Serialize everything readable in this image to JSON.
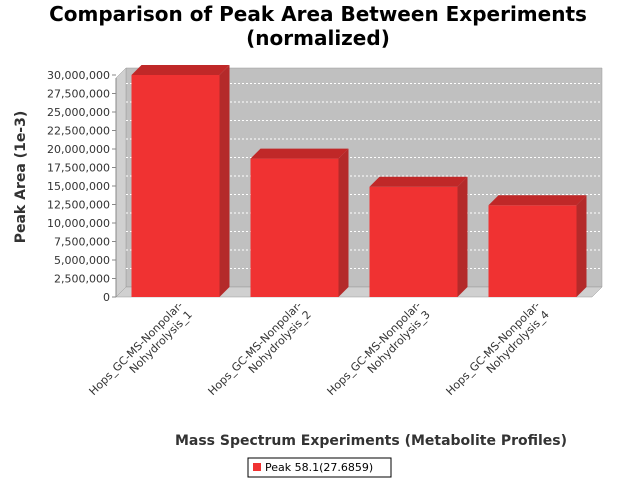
{
  "chart_data": {
    "type": "bar",
    "title": "Comparison of Peak Area Between Experiments",
    "subtitle": "(normalized)",
    "xlabel": "Mass Spectrum Experiments (Metabolite Profiles)",
    "ylabel": "Peak Area (1e-3)",
    "categories": [
      [
        "Hops_GC-MS-Nonpolar-",
        "Nohydrolysis_1"
      ],
      [
        "Hops_GC-MS-Nonpolar-",
        "Nohydrolysis_2"
      ],
      [
        "Hops_GC-MS-Nonpolar-",
        "Nohydrolysis_3"
      ],
      [
        "Hops_GC-MS-Nonpolar-",
        "Nohydrolysis_4"
      ]
    ],
    "series": [
      {
        "name": "Peak 58.1(27.6859)",
        "values": [
          30000000,
          18700000,
          14900000,
          12400000
        ]
      }
    ],
    "ylim": [
      0,
      30000000
    ],
    "yticks": [
      0,
      2500000,
      5000000,
      7500000,
      10000000,
      12500000,
      15000000,
      17500000,
      20000000,
      22500000,
      25000000,
      27500000,
      30000000
    ],
    "ytick_labels": [
      "0",
      "2,500,000",
      "5,000,000",
      "7,500,000",
      "10,000,000",
      "12,500,000",
      "15,000,000",
      "17,500,000",
      "20,000,000",
      "22,500,000",
      "25,000,000",
      "27,500,000",
      "30,000,000"
    ],
    "grid": true,
    "legend_position": "bottom-center",
    "colors": {
      "bar_front": "#f03232",
      "bar_side": "#b42a2a",
      "bar_top": "#c02828",
      "plot_bg": "#c0c0c0",
      "plot_wall": "#d0d0d0",
      "grid": "#ffffff"
    }
  }
}
